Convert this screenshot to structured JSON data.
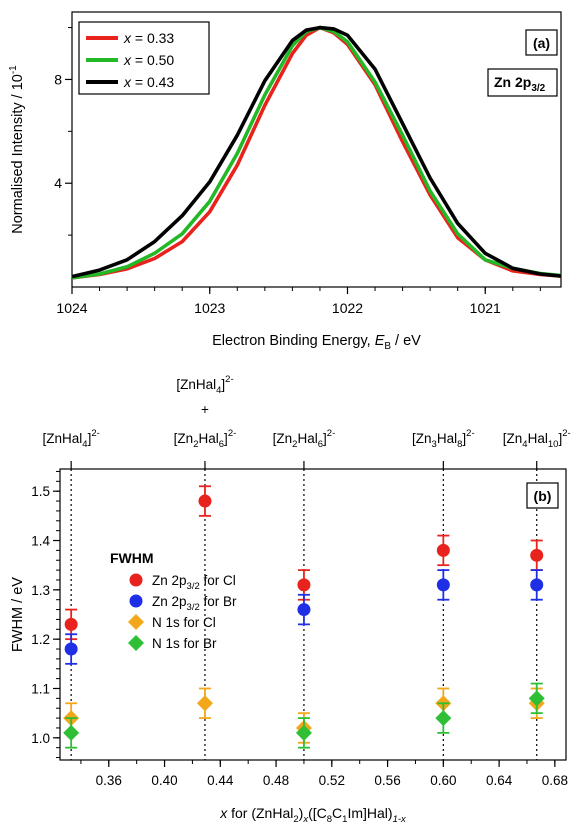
{
  "chart_data": [
    {
      "type": "line",
      "panel_label": "(a)",
      "annotation": {
        "main": "Zn 2p",
        "sub": "3/2"
      },
      "xlabel": {
        "pre": "Electron Binding Energy, ",
        "var": "E",
        "sub": "B",
        "post": " / eV"
      },
      "ylabel": "Normalised Intensity / 10",
      "ylabel_sup": "-1",
      "xlim": [
        1024,
        1020.45
      ],
      "ylim": [
        0,
        10.6
      ],
      "xticks": [
        1024,
        1023,
        1022,
        1021
      ],
      "xtick_labels": [
        "1024",
        "1023",
        "1022",
        "1021"
      ],
      "yticks": [
        4,
        8
      ],
      "ytick_labels": [
        "4",
        "8"
      ],
      "legend_position": "top-left",
      "series": [
        {
          "name": "x = 0.33",
          "name_var": "x",
          "name_rest": " = 0.33",
          "color": "#e8231d",
          "x": [
            1024.0,
            1023.8,
            1023.6,
            1023.4,
            1023.2,
            1023.0,
            1022.8,
            1022.6,
            1022.4,
            1022.3,
            1022.2,
            1022.1,
            1022.0,
            1021.8,
            1021.6,
            1021.4,
            1021.2,
            1021.0,
            1020.8,
            1020.6,
            1020.45
          ],
          "y": [
            0.35,
            0.48,
            0.7,
            1.1,
            1.75,
            2.9,
            4.7,
            7.0,
            9.0,
            9.7,
            10.0,
            9.8,
            9.35,
            7.8,
            5.6,
            3.55,
            1.9,
            1.05,
            0.62,
            0.48,
            0.42
          ]
        },
        {
          "name": "x = 0.50",
          "name_var": "x",
          "name_rest": " = 0.50",
          "color": "#22b826",
          "x": [
            1024.0,
            1023.8,
            1023.6,
            1023.4,
            1023.2,
            1023.0,
            1022.8,
            1022.6,
            1022.4,
            1022.3,
            1022.2,
            1022.1,
            1022.0,
            1021.8,
            1021.6,
            1021.4,
            1021.2,
            1021.0,
            1020.8,
            1020.6,
            1020.45
          ],
          "y": [
            0.35,
            0.5,
            0.78,
            1.3,
            2.05,
            3.3,
            5.15,
            7.4,
            9.3,
            9.85,
            10.0,
            9.85,
            9.45,
            7.9,
            5.85,
            3.7,
            2.05,
            1.05,
            0.72,
            0.52,
            0.44
          ]
        },
        {
          "name": "x = 0.43",
          "name_var": "x",
          "name_rest": " = 0.43",
          "color": "#000000",
          "x": [
            1024.0,
            1023.8,
            1023.6,
            1023.4,
            1023.2,
            1023.0,
            1022.8,
            1022.6,
            1022.4,
            1022.3,
            1022.2,
            1022.1,
            1022.0,
            1021.8,
            1021.6,
            1021.4,
            1021.2,
            1021.0,
            1020.8,
            1020.6,
            1020.45
          ],
          "y": [
            0.4,
            0.65,
            1.05,
            1.75,
            2.75,
            4.05,
            5.85,
            7.95,
            9.5,
            9.9,
            10.0,
            9.95,
            9.7,
            8.4,
            6.3,
            4.2,
            2.45,
            1.3,
            0.72,
            0.5,
            0.42
          ]
        }
      ]
    },
    {
      "type": "scatter",
      "panel_label": "(b)",
      "ylabel": "FWHM / eV",
      "xlabel": {
        "pre": "",
        "var": "x",
        "post": " for (ZnHal",
        "sub1": "2",
        "mid": ")",
        "sub2": "x",
        "rest": "([C",
        "sub3": "8",
        "c": "C",
        "sub4": "1",
        "tail": "Im]Hal)",
        "sub5": "1-x"
      },
      "xlim": [
        0.325,
        0.688
      ],
      "ylim": [
        0.955,
        1.545
      ],
      "xticks": [
        0.36,
        0.4,
        0.44,
        0.48,
        0.52,
        0.56,
        0.6,
        0.64,
        0.68
      ],
      "xtick_labels": [
        "0.36",
        "0.40",
        "0.44",
        "0.48",
        "0.52",
        "0.56",
        "0.60",
        "0.64",
        "0.68"
      ],
      "yticks": [
        1.0,
        1.1,
        1.2,
        1.3,
        1.4,
        1.5
      ],
      "ytick_labels": [
        "1.0",
        "1.1",
        "1.2",
        "1.3",
        "1.4",
        "1.5"
      ],
      "legend_title": "FWHM",
      "legend_position": "center-left",
      "reference_lines": [
        0.333,
        0.429,
        0.5,
        0.6,
        0.667
      ],
      "top_labels": [
        {
          "x": 0.333,
          "base": "[ZnHal",
          "sub": "4",
          "sup": "2-"
        },
        {
          "x": 0.429,
          "base": "[Zn",
          "sub": "2",
          "base2": "Hal",
          "sub2": "6",
          "sup": "2-"
        },
        {
          "x": 0.5,
          "base": "[Zn",
          "sub": "2",
          "base2": "Hal",
          "sub2": "6",
          "sup": "2-"
        },
        {
          "x": 0.6,
          "base": "[Zn",
          "sub": "3",
          "base2": "Hal",
          "sub2": "8",
          "sup": "2-"
        },
        {
          "x": 0.667,
          "base": "[Zn",
          "sub": "4",
          "base2": "Hal",
          "sub2": "10",
          "sup": "2-"
        }
      ],
      "mixed_label": {
        "x": 0.429,
        "line1_base": "[ZnHal",
        "line1_sub": "4",
        "line1_sup": "2-",
        "plus": "+"
      },
      "series": [
        {
          "name_main": "Zn 2p",
          "name_sub": "3/2",
          "name_rest": " for Cl",
          "marker": "circle",
          "color": "#e8231d",
          "x": [
            0.333,
            0.429,
            0.5,
            0.6,
            0.667
          ],
          "y": [
            1.23,
            1.48,
            1.31,
            1.38,
            1.37
          ],
          "err": [
            0.03,
            0.03,
            0.03,
            0.03,
            0.03
          ]
        },
        {
          "name_main": "Zn 2p",
          "name_sub": "3/2",
          "name_rest": " for Br",
          "marker": "circle",
          "color": "#1f2fe6",
          "x": [
            0.333,
            0.5,
            0.6,
            0.667
          ],
          "y": [
            1.18,
            1.26,
            1.31,
            1.31
          ],
          "err": [
            0.03,
            0.03,
            0.03,
            0.03
          ]
        },
        {
          "name_main": "N 1s for Cl",
          "name_sub": "",
          "name_rest": "",
          "marker": "diamond",
          "color": "#f3a81b",
          "x": [
            0.333,
            0.429,
            0.5,
            0.6,
            0.667
          ],
          "y": [
            1.04,
            1.07,
            1.02,
            1.07,
            1.07
          ],
          "err": [
            0.03,
            0.03,
            0.03,
            0.03,
            0.03
          ]
        },
        {
          "name_main": "N 1s for Br",
          "name_sub": "",
          "name_rest": "",
          "marker": "diamond",
          "color": "#2fbf35",
          "x": [
            0.333,
            0.5,
            0.6,
            0.667
          ],
          "y": [
            1.01,
            1.01,
            1.04,
            1.08
          ],
          "err": [
            0.03,
            0.03,
            0.03,
            0.03
          ]
        }
      ]
    }
  ]
}
